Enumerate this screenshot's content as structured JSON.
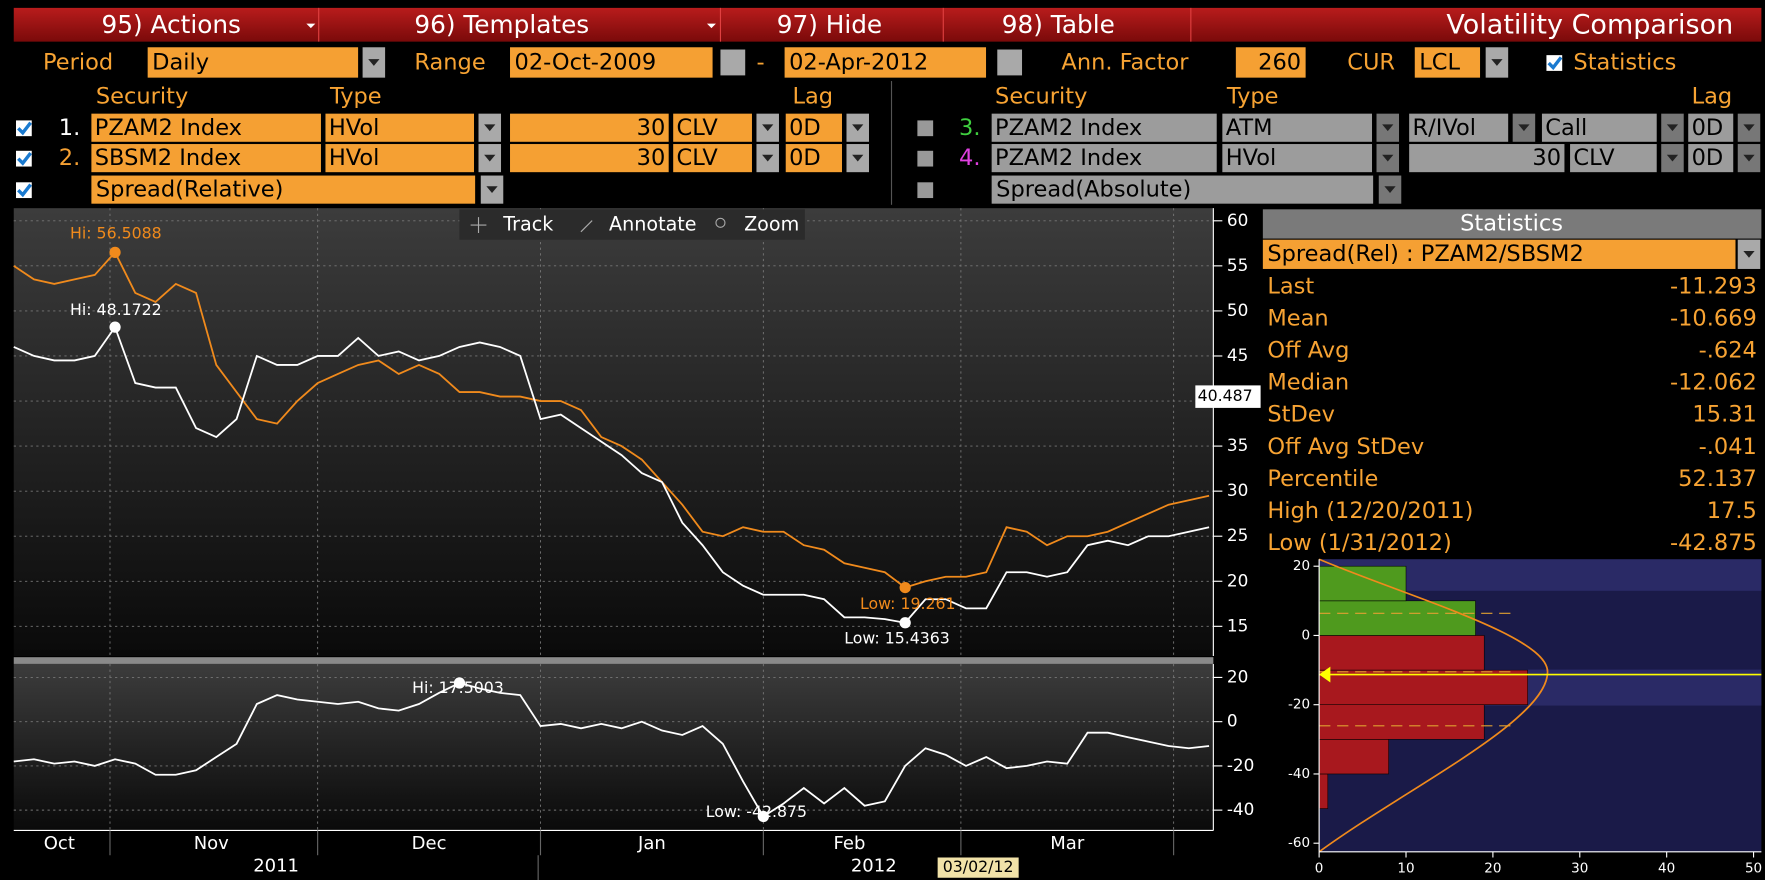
{
  "toolbar": {
    "items": [
      "95) Actions",
      "96) Templates",
      "97) Hide",
      "98) Table"
    ],
    "title": "Volatility Comparison"
  },
  "settings": {
    "period_label": "Period",
    "period": "Daily",
    "range_label": "Range",
    "start": "02-Oct-2009",
    "separator": "-",
    "end": "02-Apr-2012",
    "ann_factor_label": "Ann. Factor",
    "ann_factor": "260",
    "cur_label": "CUR",
    "cur": "LCL",
    "statistics_label": "Statistics"
  },
  "securities_left": {
    "headers": [
      "Security",
      "Type",
      "Lag"
    ],
    "rows": [
      [
        "1.",
        "PZAM2 Index",
        "HVol",
        "30",
        "CLV",
        "0D"
      ],
      [
        "2.",
        "SBSM2 Index",
        "HVol",
        "30",
        "CLV",
        "0D"
      ]
    ],
    "spread": "Spread(Relative)"
  },
  "securities_right": {
    "headers": [
      "Security",
      "Type",
      "Lag"
    ],
    "rows": [
      [
        "3.",
        "PZAM2 Index",
        "ATM",
        "R/IVol",
        "Call",
        "0D"
      ],
      [
        "4.",
        "PZAM2 Index",
        "HVol",
        "30",
        "CLV",
        "0D"
      ]
    ],
    "spread": "Spread(Absolute)"
  },
  "chart_tools": [
    "Track",
    "Annotate",
    "Zoom"
  ],
  "chart_data": [
    {
      "type": "line",
      "x": [
        0,
        2,
        4,
        6,
        8,
        10,
        12,
        14,
        16,
        18,
        20,
        22,
        24,
        26,
        28,
        30,
        32,
        34,
        36,
        38,
        40,
        42,
        44,
        46,
        48,
        50,
        52,
        54,
        56,
        58,
        60,
        62,
        64,
        66,
        68,
        70,
        72,
        74,
        76,
        78,
        80,
        82,
        84,
        86,
        88,
        90,
        92,
        94,
        96,
        98,
        100,
        102,
        104,
        106,
        108,
        110,
        112,
        114,
        116,
        118
      ],
      "series": [
        {
          "color": "#f08a1c",
          "values": [
            55,
            53.5,
            53,
            53.5,
            54,
            56.5,
            52,
            51,
            53,
            52,
            44,
            41,
            38,
            37.5,
            40,
            42,
            43,
            44,
            44.5,
            43,
            44,
            43,
            41,
            41,
            40.5,
            40.5,
            40,
            40,
            39,
            36,
            35,
            33.5,
            31,
            28.5,
            25.5,
            25,
            26,
            25.5,
            25.5,
            24,
            23.5,
            22,
            21.5,
            21,
            19.3,
            20,
            20.5,
            20.5,
            21,
            26,
            25.5,
            24,
            25,
            25,
            25.5,
            26.5,
            27.5,
            28.5,
            29,
            29.5
          ]
        },
        {
          "color": "#ffffff",
          "values": [
            46,
            45,
            44.5,
            44.5,
            45,
            48.2,
            42,
            41.5,
            41.5,
            37,
            36,
            38,
            45,
            44,
            44,
            45,
            45,
            47,
            45,
            45.5,
            44.5,
            45,
            46,
            46.5,
            46,
            45,
            38,
            38.5,
            37,
            35.5,
            34,
            32,
            31,
            26.5,
            24,
            21,
            19.5,
            18.5,
            18.5,
            18.5,
            18,
            16,
            16,
            15.8,
            15.4,
            18,
            18,
            17,
            17,
            21,
            21,
            20.5,
            21,
            24,
            24.5,
            24,
            25,
            25,
            25.5,
            26
          ]
        }
      ],
      "xlim": [
        0,
        118.2
      ],
      "ylim": [
        11.7,
        61.4
      ],
      "yticks": [
        15,
        20,
        25,
        30,
        35,
        40,
        45,
        50,
        55,
        60
      ],
      "xticks": [
        9.5,
        30,
        52,
        74,
        93.5,
        114.5
      ],
      "x_labels": [
        {
          "value": 4.5,
          "label": "Oct"
        },
        {
          "value": 19.5,
          "label": "Nov"
        },
        {
          "value": 41,
          "label": "Dec"
        },
        {
          "value": 63,
          "label": "Jan"
        },
        {
          "value": 82.5,
          "label": "Feb"
        },
        {
          "value": 104,
          "label": "Mar"
        }
      ],
      "year_labels": [
        {
          "value": 25.9,
          "label": "2011"
        },
        {
          "value": 84.9,
          "label": "2012"
        }
      ],
      "annotations": [
        "Hi: 56.5088",
        "Hi: 48.1722",
        "Low: 19.261",
        "Low: 15.4363"
      ],
      "axis_marker": 40.487,
      "grid": true
    },
    {
      "type": "line",
      "x": [
        0,
        2,
        4,
        6,
        8,
        10,
        12,
        14,
        16,
        18,
        20,
        22,
        24,
        26,
        28,
        30,
        32,
        34,
        36,
        38,
        40,
        42,
        44,
        46,
        48,
        50,
        52,
        54,
        56,
        58,
        60,
        62,
        64,
        66,
        68,
        70,
        72,
        74,
        76,
        78,
        80,
        82,
        84,
        86,
        88,
        90,
        92,
        94,
        96,
        98,
        100,
        102,
        104,
        106,
        108,
        110,
        112,
        114,
        116,
        118
      ],
      "series": [
        {
          "color": "#ffffff",
          "values": [
            -18,
            -17,
            -19,
            -18,
            -20,
            -17,
            -19,
            -24,
            -24,
            -22,
            -16,
            -10,
            8,
            12,
            10,
            9,
            8,
            9,
            6,
            5,
            8,
            13,
            17.5,
            15,
            13,
            12,
            -2,
            -1,
            -3,
            -1,
            -3,
            0,
            -4,
            -6,
            -2,
            -10,
            -27,
            -42.9,
            -37,
            -30,
            -37,
            -30,
            -38,
            -36,
            -20,
            -12,
            -15,
            -20,
            -16,
            -21,
            -20,
            -18,
            -19,
            -5,
            -5,
            -7,
            -9,
            -11,
            -12,
            -11
          ]
        }
      ],
      "xlim": [
        0,
        118.2
      ],
      "ylim": [
        -49.2,
        26.1
      ],
      "yticks": [
        -40,
        -20,
        0,
        20
      ],
      "annotations": [
        "Hi: 17.5003",
        "Low: -42.875"
      ],
      "grid": true
    },
    {
      "type": "histogram",
      "orientation": "horizontal",
      "bins": [
        -60,
        -50,
        -40,
        -30,
        -20,
        -10,
        0,
        10,
        20
      ],
      "counts": [
        0,
        1,
        8,
        19,
        24,
        19,
        18,
        10
      ],
      "negative_color": "#a8181e",
      "positive_color": "#4f9a1e",
      "ylim": [
        -62.5,
        22
      ],
      "yticks": [
        -60,
        -40,
        -20,
        0,
        20
      ],
      "xlim": [
        0,
        50.9
      ],
      "xticks": [
        0,
        10,
        20,
        30,
        40,
        50
      ],
      "marker_value": -11.293,
      "marker_color": "#ffff00"
    }
  ],
  "statistics": {
    "title": "Statistics",
    "selector": "Spread(Rel) : PZAM2/SBSM2",
    "rows": [
      [
        "Last",
        "-11.293"
      ],
      [
        "Mean",
        "-10.669"
      ],
      [
        "Off Avg",
        "-.624"
      ],
      [
        "Median",
        "-12.062"
      ],
      [
        "StDev",
        "15.31"
      ],
      [
        "Off Avg StDev",
        "-.041"
      ],
      [
        "Percentile",
        "52.137"
      ],
      [
        "High (12/20/2011)",
        "17.5"
      ],
      [
        "Low (1/31/2012)",
        "-42.875"
      ]
    ]
  },
  "cursor_date": "03/02/12"
}
